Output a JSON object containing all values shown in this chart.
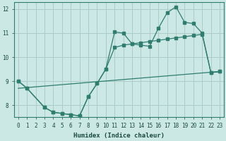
{
  "bg_color": "#cce8e4",
  "grid_color": "#aaccca",
  "line_color": "#2e7d6e",
  "xlabel": "Humidex (Indice chaleur)",
  "xlim": [
    -0.5,
    23.5
  ],
  "ylim": [
    7.5,
    12.3
  ],
  "yticks": [
    8,
    9,
    10,
    11,
    12
  ],
  "xticks": [
    0,
    1,
    2,
    3,
    4,
    5,
    6,
    7,
    8,
    9,
    10,
    11,
    12,
    13,
    14,
    15,
    16,
    17,
    18,
    19,
    20,
    21,
    22,
    23
  ],
  "line1_x": [
    0,
    1,
    3,
    4,
    5,
    6,
    7,
    8,
    9,
    10,
    11,
    12,
    13,
    14,
    15,
    16,
    17,
    18,
    19,
    20,
    21,
    22,
    23
  ],
  "line1_y": [
    9.0,
    8.7,
    7.9,
    7.7,
    7.65,
    7.6,
    7.55,
    8.35,
    8.9,
    9.5,
    11.05,
    11.0,
    10.55,
    10.5,
    10.45,
    11.2,
    11.85,
    12.1,
    11.45,
    11.4,
    11.0,
    9.35,
    9.4
  ],
  "line2_x": [
    0,
    1,
    3,
    4,
    5,
    6,
    7,
    8,
    9,
    10,
    11,
    12,
    13,
    14,
    15,
    16,
    17,
    18,
    19,
    20,
    21,
    22,
    23
  ],
  "line2_y": [
    9.0,
    8.7,
    7.9,
    7.7,
    7.65,
    7.6,
    7.55,
    8.35,
    8.9,
    9.5,
    10.4,
    10.5,
    10.55,
    10.6,
    10.65,
    10.7,
    10.75,
    10.8,
    10.85,
    10.9,
    10.95,
    9.35,
    9.4
  ],
  "line3_x": [
    0,
    23
  ],
  "line3_y": [
    8.7,
    9.4
  ],
  "marker_line1_x": [
    0,
    1,
    3,
    4,
    5,
    6,
    7,
    8,
    9,
    10,
    11,
    12,
    13,
    14,
    15,
    16,
    17,
    18,
    19,
    20,
    21,
    22,
    23
  ],
  "marker_line1_y": [
    9.0,
    8.7,
    7.9,
    7.7,
    7.65,
    7.6,
    7.55,
    8.35,
    8.9,
    9.5,
    11.05,
    11.0,
    10.55,
    10.5,
    10.45,
    11.2,
    11.85,
    12.1,
    11.45,
    11.4,
    11.0,
    9.35,
    9.4
  ]
}
